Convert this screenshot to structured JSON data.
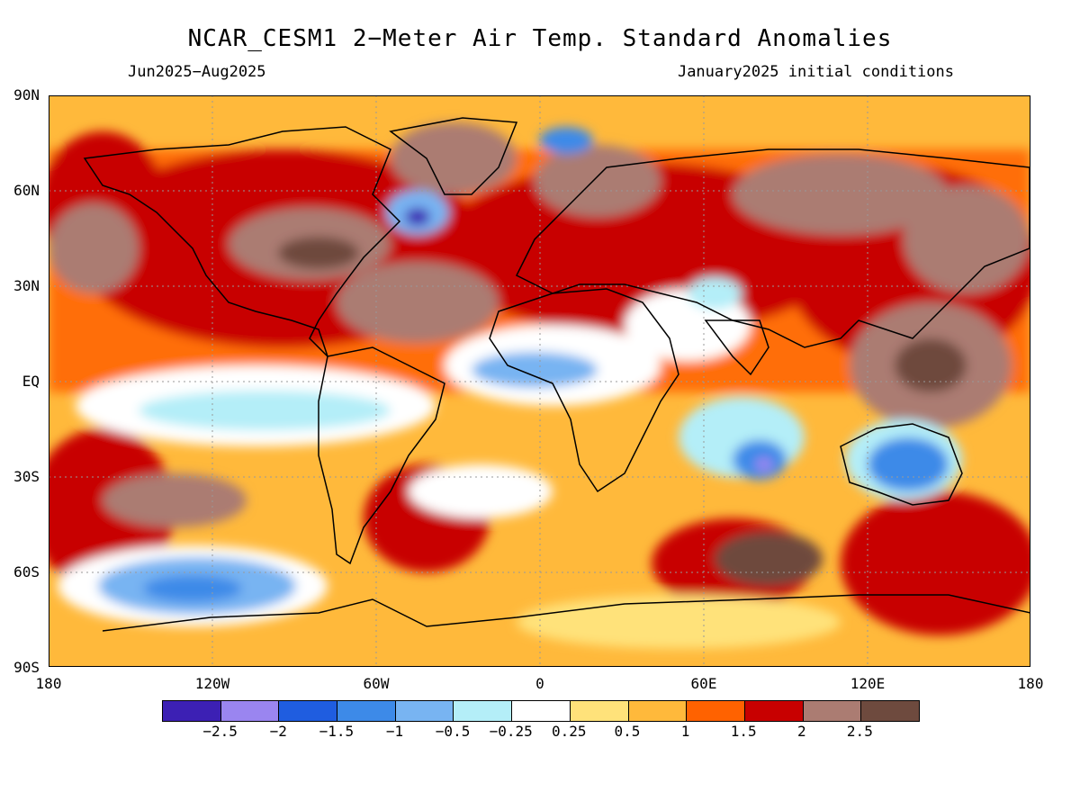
{
  "title": "NCAR_CESM1 2−Meter Air Temp. Standard Anomalies",
  "period": "Jun2025−Aug2025",
  "initial_conditions": "January2025 initial conditions",
  "lat_labels": [
    "90N",
    "60N",
    "30N",
    "EQ",
    "30S",
    "60S",
    "90S"
  ],
  "lon_labels": [
    "180",
    "120W",
    "60W",
    "0",
    "60E",
    "120E",
    "180"
  ],
  "colorbar": {
    "colors": [
      "#3c20b4",
      "#9a85f0",
      "#1f5de0",
      "#3d8ae8",
      "#78b4f2",
      "#b4eef8",
      "#ffffff",
      "#ffe27a",
      "#ffb93b",
      "#ff6200",
      "#c80000",
      "#ab7c72",
      "#6e4a3e"
    ],
    "labels": [
      "−2.5",
      "−2",
      "−1.5",
      "−1",
      "−0.5",
      "−0.25",
      "0.25",
      "0.5",
      "1",
      "1.5",
      "2",
      "2.5"
    ]
  }
}
